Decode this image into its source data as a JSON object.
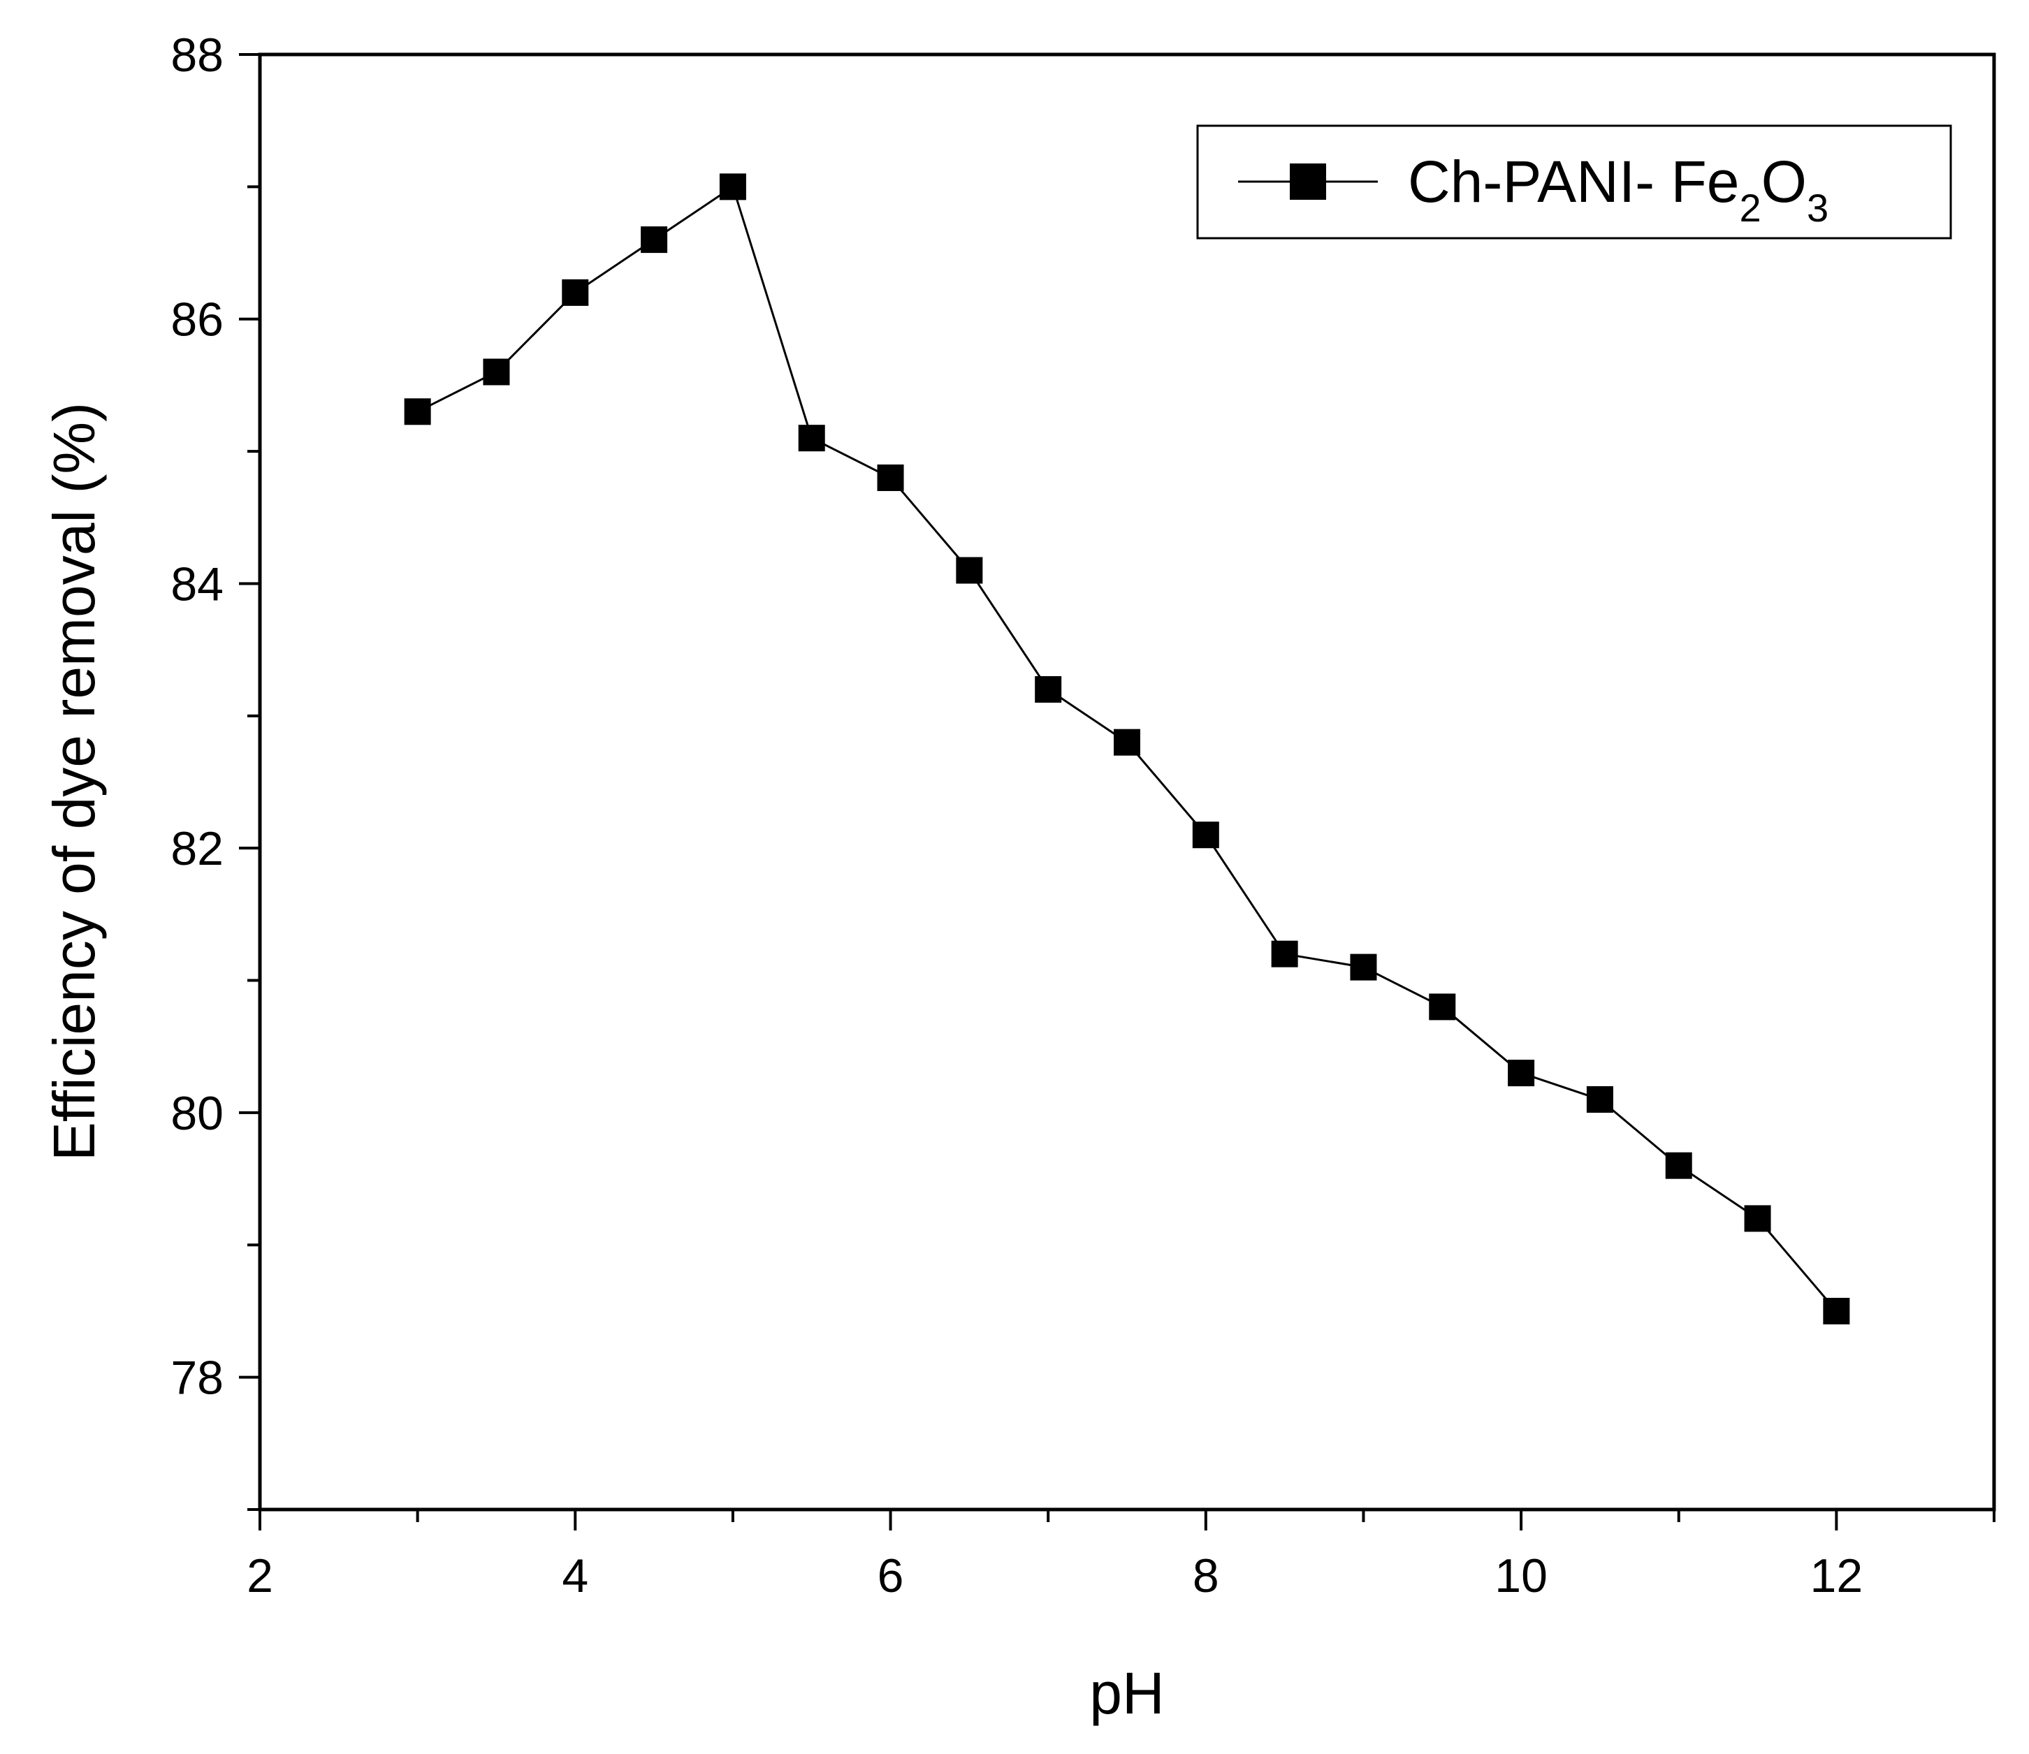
{
  "chart_data": {
    "type": "line",
    "title": "",
    "xlabel": "pH",
    "ylabel": "Efficiency of dye removal (%)",
    "xlim": [
      2,
      13
    ],
    "ylim": [
      77,
      88
    ],
    "x_ticks": [
      2,
      4,
      6,
      8,
      10,
      12
    ],
    "y_ticks": [
      78,
      80,
      82,
      84,
      86,
      88
    ],
    "grid": false,
    "legend_position": "top-right",
    "legend": {
      "main": "Ch-PANI- Fe",
      "sub1": "2",
      "mid": "O",
      "sub2": "3"
    },
    "series": [
      {
        "name": "Ch-PANI- Fe2O3",
        "marker": "filled-square",
        "color": "#000000",
        "x": [
          3,
          3.5,
          4,
          4.5,
          5,
          5.5,
          6,
          6.5,
          7,
          7.5,
          8,
          8.5,
          9,
          9.5,
          10,
          10.5,
          11,
          11.5,
          12
        ],
        "y": [
          85.3,
          85.6,
          86.2,
          86.6,
          87.0,
          85.1,
          84.8,
          84.1,
          83.2,
          82.8,
          82.1,
          81.2,
          81.1,
          80.8,
          80.3,
          80.1,
          79.6,
          79.2,
          78.5
        ]
      }
    ]
  }
}
